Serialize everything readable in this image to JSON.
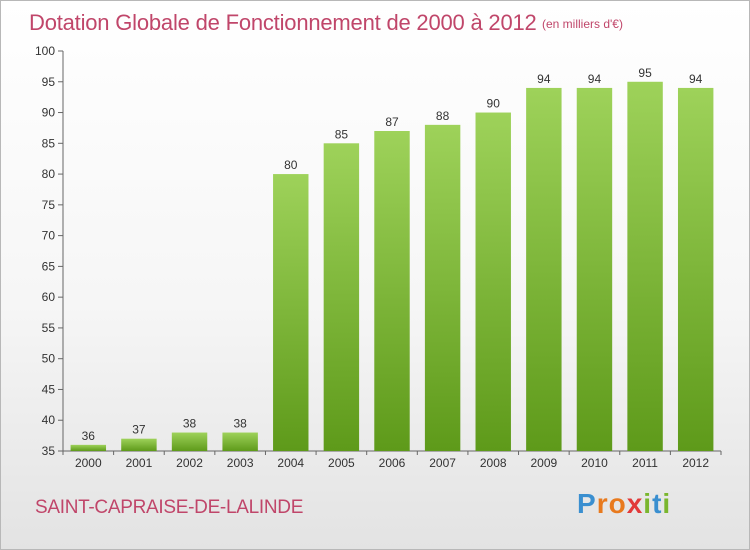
{
  "title": "Dotation Globale de Fonctionnement de 2000 à 2012",
  "subtitle": "(en milliers d'€)",
  "commune": "SAINT-CAPRAISE-DE-LALINDE",
  "brand": {
    "letters": [
      "P",
      "r",
      "o",
      "x",
      "i",
      "t",
      "i"
    ],
    "colors": [
      "#3a8fd0",
      "#e87a1e",
      "#e87a1e",
      "#e23a3a",
      "#7ab62e",
      "#3a8fd0",
      "#7ab62e"
    ]
  },
  "colors": {
    "bar_top": "#9ed25a",
    "bar_bottom": "#5e9a1a",
    "text_accent": "#c0466a"
  },
  "chart_data": {
    "type": "bar",
    "categories": [
      "2000",
      "2001",
      "2002",
      "2003",
      "2004",
      "2005",
      "2006",
      "2007",
      "2008",
      "2009",
      "2010",
      "2011",
      "2012"
    ],
    "values": [
      36,
      37,
      38,
      38,
      80,
      85,
      87,
      88,
      90,
      94,
      94,
      95,
      94
    ],
    "ylim": [
      35,
      100
    ],
    "yticks": [
      35,
      40,
      45,
      50,
      55,
      60,
      65,
      70,
      75,
      80,
      85,
      90,
      95,
      100
    ],
    "grid": false,
    "legend": "none"
  }
}
